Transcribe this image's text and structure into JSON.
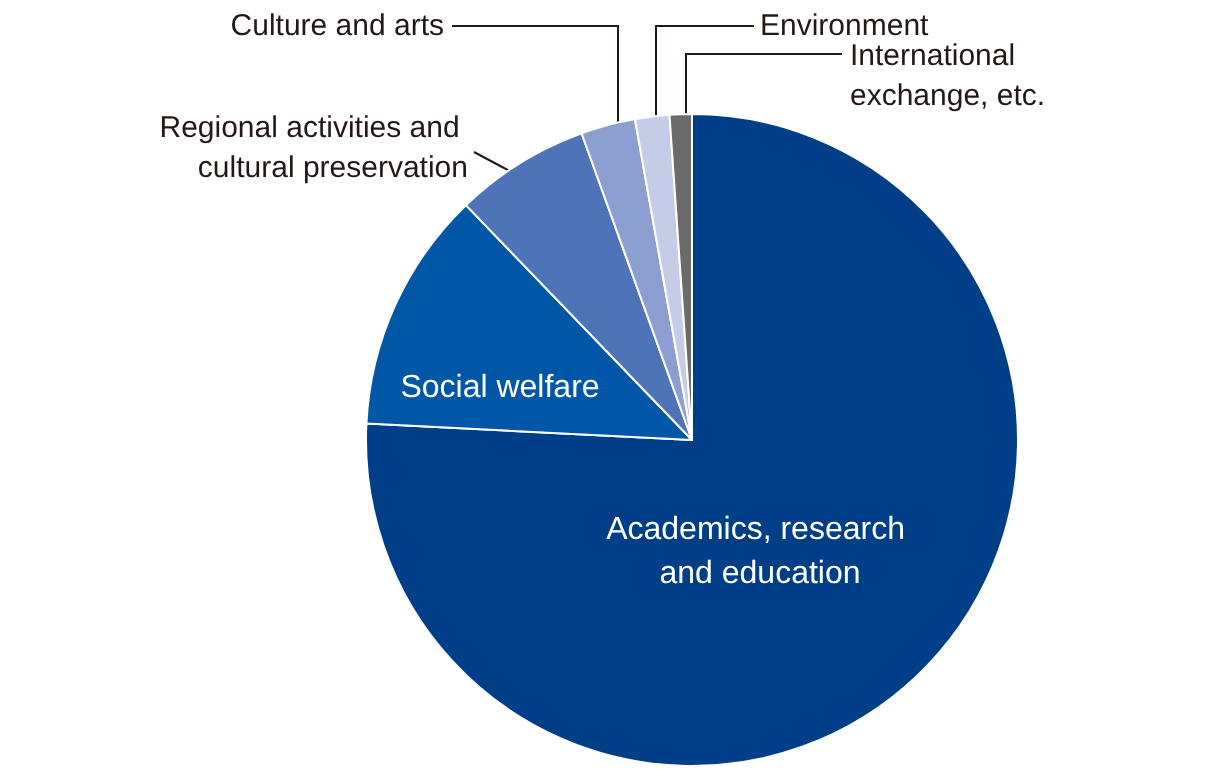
{
  "chart_data": {
    "type": "pie",
    "categories": [
      "Academics, research and education",
      "Social welfare",
      "Regional activities and cultural preservation",
      "Culture and arts",
      "Environment",
      "International exchange, etc."
    ],
    "values": [
      75.8,
      12,
      6.7,
      2.7,
      1.7,
      1.1
    ],
    "colors": [
      "#003f87",
      "#0057a8",
      "#4f73b8",
      "#8c9fd1",
      "#c5cce8",
      "#6b6b6b"
    ],
    "legend": false
  }
}
